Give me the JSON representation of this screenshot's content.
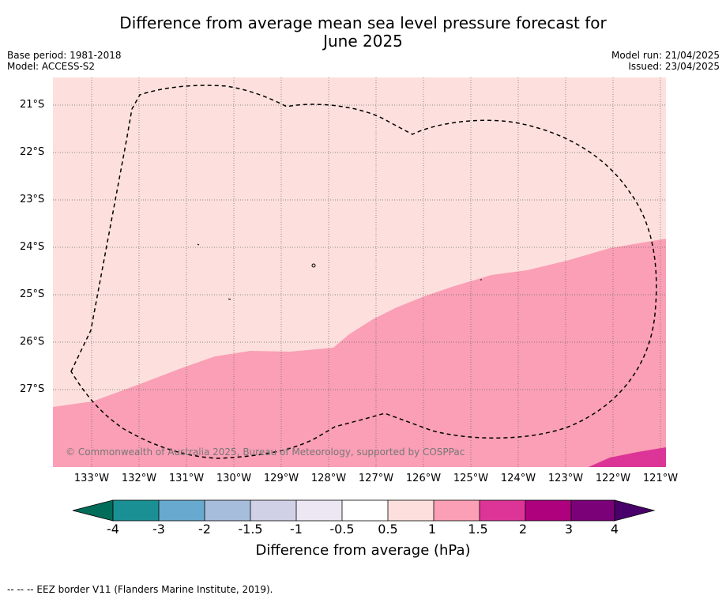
{
  "title_line1": "Difference from average mean sea level pressure forecast for",
  "title_line2": "June 2025",
  "meta_left": {
    "base_period": "Base period: 1981-2018",
    "model": "Model: ACCESS-S2"
  },
  "meta_right": {
    "model_run": "Model run: 21/04/2025",
    "issued": "Issued: 23/04/2025"
  },
  "lat_labels": [
    "21°S",
    "22°S",
    "23°S",
    "24°S",
    "25°S",
    "26°S",
    "27°S"
  ],
  "lon_labels": [
    "133°W",
    "132°W",
    "131°W",
    "130°W",
    "129°W",
    "128°W",
    "127°W",
    "126°W",
    "125°W",
    "124°W",
    "123°W",
    "122°W",
    "121°W"
  ],
  "copyright": "© Commonwealth of Australia 2025, Bureau of Meteorology, supported by COSPPac",
  "colorbar": {
    "label": "Difference from average (hPa)",
    "ticks": [
      "-4",
      "-3",
      "-2",
      "-1.5",
      "-1",
      "-0.5",
      "0.5",
      "1",
      "1.5",
      "2",
      "3",
      "4"
    ],
    "colors": [
      "#1a9094",
      "#67a9cf",
      "#a6bddb",
      "#d0d1e6",
      "#ece7f2",
      "#ffffff",
      "#fde0dd",
      "#fa9fb5",
      "#dd3497",
      "#ae017e",
      "#7a0177"
    ],
    "under_color": "#016c59",
    "over_color": "#49006a"
  },
  "map_colors": {
    "band_0_5_to_1": "#fde0dd",
    "band_1_to_1_5": "#fa9fb5",
    "band_1_5_to_2": "#dd3497"
  },
  "footnote": "--  --  -- EEZ border V11 (Flanders Marine Institute, 2019)."
}
